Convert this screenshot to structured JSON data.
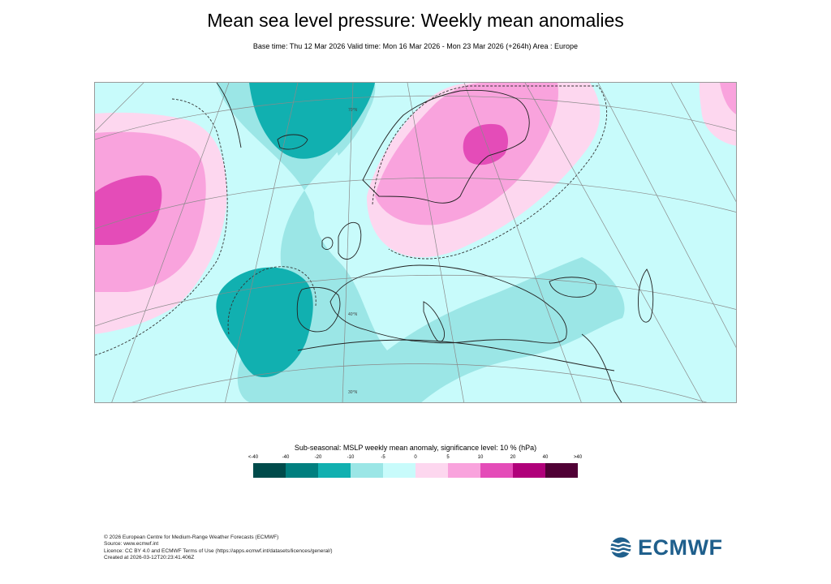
{
  "title": "Mean sea level pressure: Weekly mean anomalies",
  "subtitle": "Base time: Thu 12 Mar 2026 Valid time: Mon 16 Mar 2026 - Mon 23 Mar 2026 (+264h) Area : Europe",
  "legend": {
    "title": "Sub-seasonal: MSLP weekly mean anomaly, significance level: 10 % (hPa)",
    "ticks": [
      "<-40",
      "-40",
      "-20",
      "-10",
      "-5",
      "0",
      "5",
      "10",
      "20",
      "40",
      ">40"
    ],
    "colors": [
      "#004b4b",
      "#007f7f",
      "#11b0b0",
      "#9be6e6",
      "#c8fbfb",
      "#fdd7ef",
      "#f9a3dd",
      "#e44cb8",
      "#b0007a",
      "#500035"
    ]
  },
  "footer": [
    "© 2026 European Centre for Medium-Range Weather Forecasts (ECMWF)",
    "Source: www.ecmwf.int",
    "Licence: CC BY 4.0 and ECMWF Terms of Use (https://apps.ecmwf.int/datasets/licences/general/)",
    "Created at 2026-03-12T20:23:41.406Z"
  ],
  "map_labels": {
    "lat_70": "70°N",
    "lat_40": "40°N",
    "lat_30": "30°N"
  },
  "logo": {
    "text": "ECMWF",
    "color": "#1f5f8c"
  }
}
